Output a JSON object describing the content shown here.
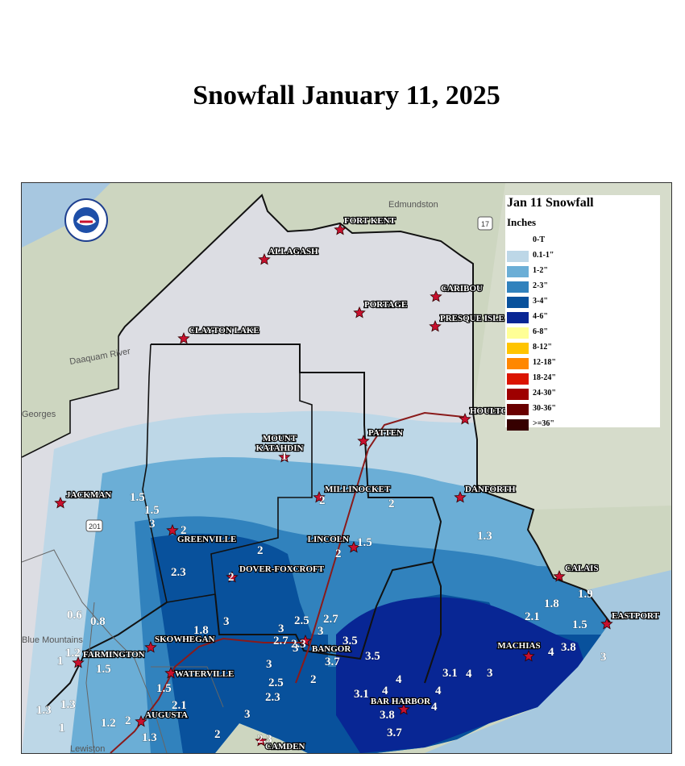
{
  "title": "Snowfall January 11, 2025",
  "legend": {
    "title": "Jan 11 Snowfall",
    "units": "Inches",
    "items": [
      {
        "label": "0-T",
        "color": "#ffffff"
      },
      {
        "label": "0.1-1\"",
        "color": "#bdd7e7"
      },
      {
        "label": "1-2\"",
        "color": "#6baed6"
      },
      {
        "label": "2-3\"",
        "color": "#3182bd"
      },
      {
        "label": "3-4\"",
        "color": "#08519c"
      },
      {
        "label": "4-6\"",
        "color": "#082694"
      },
      {
        "label": "6-8\"",
        "color": "#ffff96"
      },
      {
        "label": "8-12\"",
        "color": "#ffc400"
      },
      {
        "label": "12-18\"",
        "color": "#ff8700"
      },
      {
        "label": "18-24\"",
        "color": "#db1400"
      },
      {
        "label": "24-30\"",
        "color": "#9e0000"
      },
      {
        "label": "30-36\"",
        "color": "#690000"
      },
      {
        "label": ">=36\"",
        "color": "#360000"
      }
    ]
  },
  "basemap_labels": [
    "Edmundston",
    "Daaquam River",
    "Georges",
    "Blue Mountains",
    "Lewiston",
    "201",
    "17"
  ],
  "towns": [
    {
      "name": "FORT KENT"
    },
    {
      "name": "ALLAGASH"
    },
    {
      "name": "CARIBOU"
    },
    {
      "name": "PORTAGE"
    },
    {
      "name": "PRESQUE ISLE"
    },
    {
      "name": "CLAYTON LAKE"
    },
    {
      "name": "HOULTON"
    },
    {
      "name": "MOUNT KATAHDIN"
    },
    {
      "name": "PATTEN"
    },
    {
      "name": "MILLINOCKET"
    },
    {
      "name": "DANFORTH"
    },
    {
      "name": "JACKMAN"
    },
    {
      "name": "GREENVILLE"
    },
    {
      "name": "LINCOLN"
    },
    {
      "name": "DOVER-FOXCROFT"
    },
    {
      "name": "CALAIS"
    },
    {
      "name": "EASTPORT"
    },
    {
      "name": "MACHIAS"
    },
    {
      "name": "BANGOR"
    },
    {
      "name": "SKOWHEGAN"
    },
    {
      "name": "FARMINGTON"
    },
    {
      "name": "WATERVILLE"
    },
    {
      "name": "AUGUSTA"
    },
    {
      "name": "BAR HARBOR"
    },
    {
      "name": "CAMDEN"
    }
  ],
  "observations": [
    "1",
    "1.5",
    "1.5",
    "3",
    "2",
    "2",
    "2",
    "2",
    "1.5",
    "2",
    "1.3",
    "2.3",
    "2",
    "1.8",
    "1.9",
    "2.1",
    "1.5",
    "3",
    "3.8",
    "4",
    "3",
    "3",
    "2.5",
    "2.7",
    "3",
    "2.7",
    "2.3",
    "3",
    "3",
    "3.5",
    "3.7",
    "3.5",
    "3",
    "2",
    "2.5",
    "2.3",
    "4",
    "3.1",
    "4",
    "4",
    "4",
    "3.1",
    "4",
    "3.8",
    "3.7",
    "0.6",
    "0.8",
    "1.8",
    "1.2",
    "1",
    "1.5",
    "1.5",
    "2.1",
    "1.3",
    "1.3",
    "1.2",
    "2",
    "1.3",
    "1",
    "3",
    "2",
    "2.3"
  ]
}
